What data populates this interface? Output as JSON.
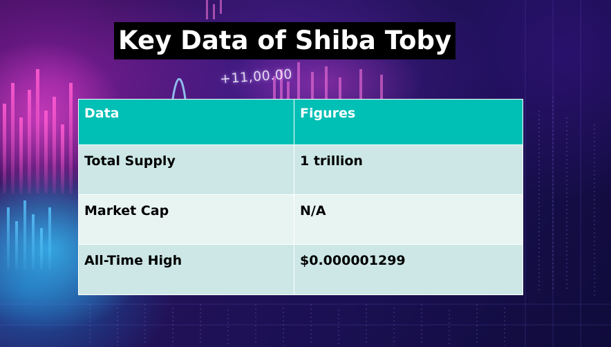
{
  "background": {
    "chart_overlay_text": "+11,00.00"
  },
  "title": "Key Data of Shiba Toby",
  "table": {
    "headers": [
      "Data",
      "Figures"
    ],
    "rows": [
      [
        "Total Supply",
        "1 trillion"
      ],
      [
        "Market Cap",
        "N/A"
      ],
      [
        "All-Time High",
        "$0.000001299"
      ]
    ]
  },
  "colors": {
    "header_bg": "#00bfb5",
    "row_dark": "#cce7e6",
    "row_light": "#e8f4f2",
    "title_bg": "#000000"
  }
}
